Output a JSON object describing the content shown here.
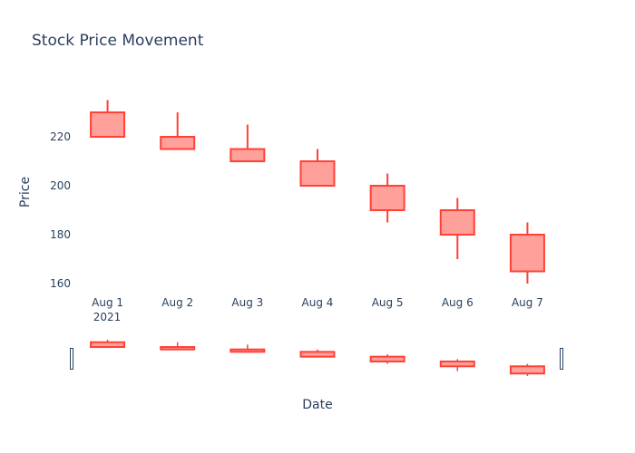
{
  "chart_data": {
    "type": "candlestick",
    "title": "Stock Price Movement",
    "xlabel": "Date",
    "ylabel": "Price",
    "x_tick_labels": [
      "Aug 1",
      "Aug 2",
      "Aug 3",
      "Aug 4",
      "Aug 5",
      "Aug 6",
      "Aug 7"
    ],
    "x_year_label": "2021",
    "y_ticks": [
      160,
      180,
      200,
      220
    ],
    "ylim": [
      155,
      242
    ],
    "increasing_color": "#3d9970",
    "decreasing_color": "#ff4136",
    "decreasing_fill": "#ffa09b",
    "range_slider": true,
    "candles": [
      {
        "date": "2021-08-01",
        "open": 230,
        "high": 235,
        "low": 220,
        "close": 220
      },
      {
        "date": "2021-08-02",
        "open": 220,
        "high": 230,
        "low": 215,
        "close": 215
      },
      {
        "date": "2021-08-03",
        "open": 215,
        "high": 225,
        "low": 210,
        "close": 210
      },
      {
        "date": "2021-08-04",
        "open": 210,
        "high": 215,
        "low": 200,
        "close": 200
      },
      {
        "date": "2021-08-05",
        "open": 200,
        "high": 205,
        "low": 185,
        "close": 190
      },
      {
        "date": "2021-08-06",
        "open": 190,
        "high": 195,
        "low": 170,
        "close": 180
      },
      {
        "date": "2021-08-07",
        "open": 180,
        "high": 185,
        "low": 160,
        "close": 165
      }
    ]
  }
}
